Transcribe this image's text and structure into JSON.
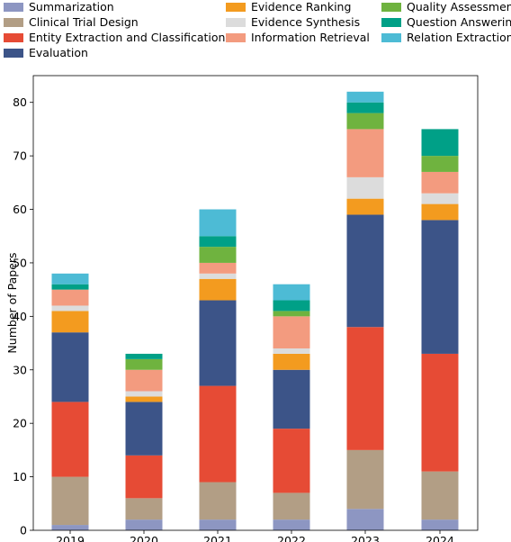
{
  "chart_data": {
    "type": "bar",
    "stacked": true,
    "categories": [
      "2019",
      "2020",
      "2021",
      "2022",
      "2023",
      "2024"
    ],
    "ylabel": "Number of Papers",
    "xlabel": "",
    "ylim": [
      0,
      85
    ],
    "yticks": [
      0,
      10,
      20,
      30,
      40,
      50,
      60,
      70,
      80
    ],
    "grid": false,
    "legend_position": "top",
    "series": [
      {
        "name": "Summarization",
        "color": "#8d96c2",
        "values": [
          1,
          2,
          2,
          2,
          4,
          2
        ]
      },
      {
        "name": "Clinical Trial Design",
        "color": "#b29e85",
        "values": [
          9,
          4,
          7,
          5,
          11,
          9
        ]
      },
      {
        "name": "Entity Extraction and Classification",
        "color": "#e64b35",
        "values": [
          14,
          8,
          18,
          12,
          23,
          22
        ]
      },
      {
        "name": "Evaluation",
        "color": "#3c5488",
        "values": [
          13,
          10,
          16,
          11,
          21,
          25
        ]
      },
      {
        "name": "Evidence Ranking",
        "color": "#f39b1f",
        "values": [
          4,
          1,
          4,
          3,
          3,
          3
        ]
      },
      {
        "name": "Evidence Synthesis",
        "color": "#dcdcdc",
        "values": [
          1,
          1,
          1,
          1,
          4,
          2
        ]
      },
      {
        "name": "Information Retrieval",
        "color": "#f39b7f",
        "values": [
          3,
          4,
          2,
          6,
          9,
          4
        ]
      },
      {
        "name": "Quality Assessment",
        "color": "#6fb33f",
        "values": [
          0,
          2,
          3,
          1,
          3,
          3
        ]
      },
      {
        "name": "Question Answering",
        "color": "#00a087",
        "values": [
          1,
          1,
          2,
          2,
          2,
          5
        ]
      },
      {
        "name": "Relation Extraction",
        "color": "#4dbbd5",
        "values": [
          2,
          0,
          5,
          3,
          2,
          0
        ]
      }
    ]
  }
}
